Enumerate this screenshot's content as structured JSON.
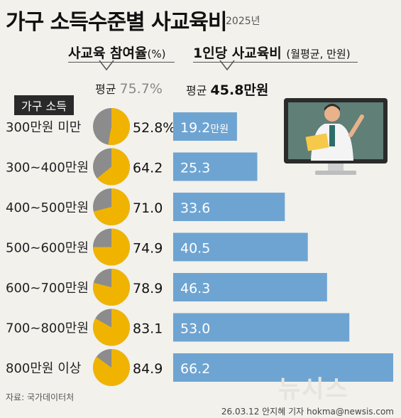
{
  "title": "가구 소득수준별 사교육비",
  "year": "2025년",
  "participation_header": "사교육 참여율",
  "participation_unit": "(%)",
  "spending_header": "1인당 사교육비",
  "spending_unit": "(월평균, 만원)",
  "avg_label_1": "평균",
  "avg_value_1": "75.7%",
  "avg_label_2": "평균",
  "avg_value_2": "45.8만원",
  "category_header": "가구 소득",
  "source": "자료: 국가데이터처",
  "credit": "26.03.12 안지혜 기자 hokma@newsis.com",
  "watermark": "뉴시스",
  "colors": {
    "pie_fill": "#f0b400",
    "pie_rest": "#8c8c8c",
    "bar": "#6ea4d2"
  },
  "chart_data": {
    "type": "bar",
    "categories": [
      "300만원 미만",
      "300~400만원",
      "400~500만원",
      "500~600만원",
      "600~700만원",
      "700~800만원",
      "800만원 이상"
    ],
    "participation_rate": [
      52.8,
      64.2,
      71.0,
      74.9,
      78.9,
      83.1,
      84.9
    ],
    "participation_labels": [
      "52.8%",
      "64.2",
      "71.0",
      "74.9",
      "78.9",
      "83.1",
      "84.9"
    ],
    "spending": [
      19.2,
      25.3,
      33.6,
      40.5,
      46.3,
      53.0,
      66.2
    ],
    "spending_labels": [
      "19.2",
      "25.3",
      "33.6",
      "40.5",
      "46.3",
      "53.0",
      "66.2"
    ],
    "first_bar_unit": "만원"
  }
}
